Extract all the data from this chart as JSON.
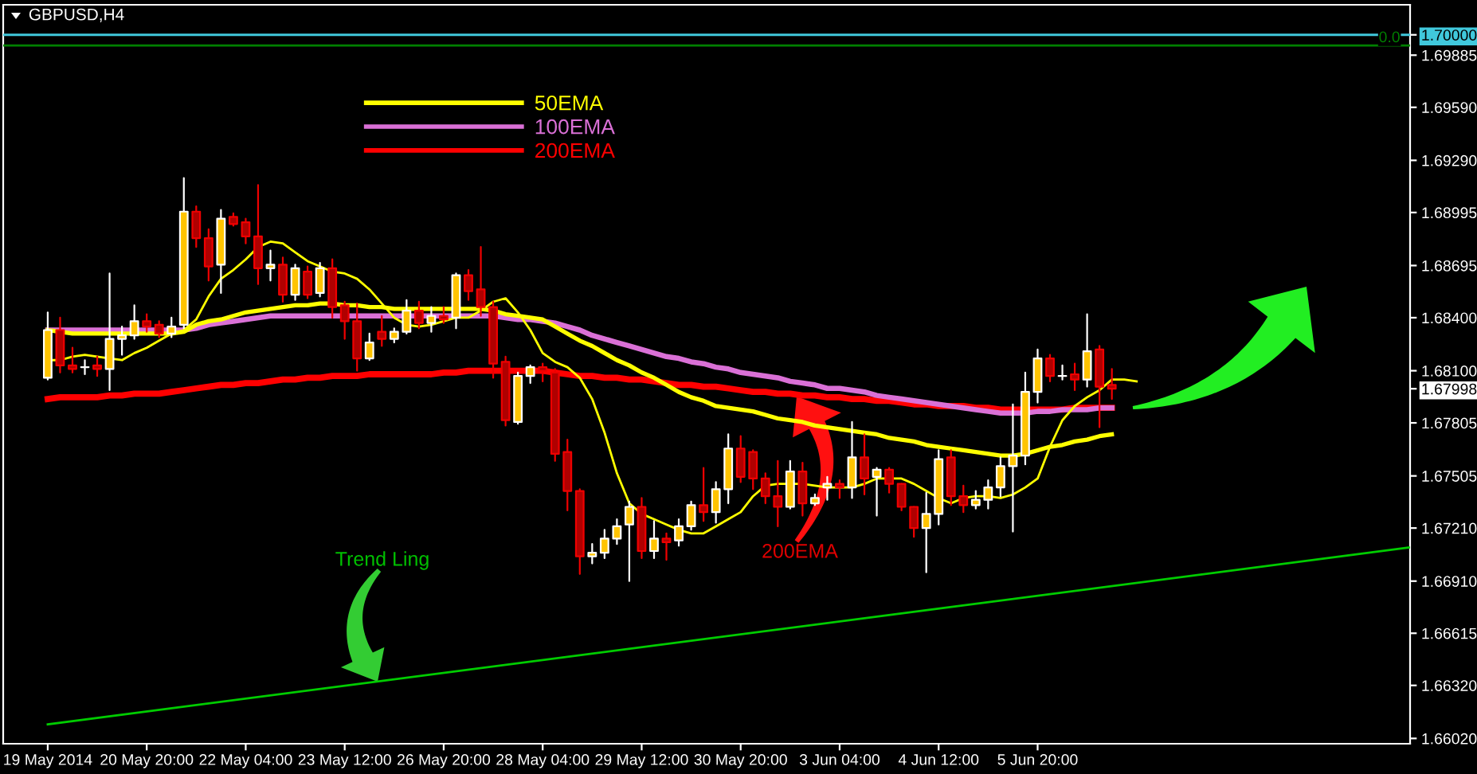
{
  "chart_data": {
    "type": "candlestick",
    "title": "GBPUSD,H4",
    "categories": [
      "19 May 2014",
      null,
      null,
      null,
      null,
      null,
      null,
      null,
      "20 May 20:00",
      null,
      null,
      null,
      null,
      null,
      null,
      null,
      "22 May 04:00",
      null,
      null,
      null,
      null,
      null,
      null,
      null,
      "23 May 12:00",
      null,
      null,
      null,
      null,
      null,
      null,
      null,
      "26 May 20:00",
      null,
      null,
      null,
      null,
      null,
      null,
      null,
      "28 May 04:00",
      null,
      null,
      null,
      null,
      null,
      null,
      null,
      "29 May 12:00",
      null,
      null,
      null,
      null,
      null,
      null,
      null,
      "30 May 20:00",
      null,
      null,
      null,
      null,
      null,
      null,
      null,
      "3 Jun 04:00",
      null,
      null,
      null,
      null,
      null,
      null,
      null,
      "4 Jun 12:00",
      null,
      null,
      null,
      null,
      null,
      null,
      null,
      "5 Jun 20:00",
      null,
      null,
      null,
      null,
      null,
      null,
      null,
      null,
      null,
      null,
      null,
      null,
      null,
      null,
      null,
      null,
      null,
      null,
      null,
      null,
      null,
      null,
      null,
      null,
      null,
      null,
      null,
      null,
      null,
      null
    ],
    "ohlc": [
      [
        1.6806,
        1.6843,
        1.6805,
        1.6833
      ],
      [
        1.6833,
        1.684,
        1.6809,
        1.6813
      ],
      [
        1.6813,
        1.6823,
        1.6809,
        1.6811
      ],
      [
        1.6812,
        1.6816,
        1.6808,
        1.6812
      ],
      [
        1.6813,
        1.6818,
        1.6807,
        1.6811
      ],
      [
        1.6811,
        1.6865,
        1.6799,
        1.6828
      ],
      [
        1.6828,
        1.6835,
        1.6819,
        1.683
      ],
      [
        1.683,
        1.6847,
        1.6828,
        1.6838
      ],
      [
        1.6838,
        1.6842,
        1.6832,
        1.6835
      ],
      [
        1.6836,
        1.6838,
        1.6829,
        1.6831
      ],
      [
        1.6831,
        1.684,
        1.6829,
        1.6835
      ],
      [
        1.6836,
        1.6919,
        1.6834,
        1.69
      ],
      [
        1.69,
        1.6903,
        1.688,
        1.6885
      ],
      [
        1.6885,
        1.689,
        1.6861,
        1.6869
      ],
      [
        1.687,
        1.6901,
        1.6854,
        1.6896
      ],
      [
        1.6897,
        1.6899,
        1.6892,
        1.6893
      ],
      [
        1.6894,
        1.6896,
        1.6882,
        1.6886
      ],
      [
        1.6886,
        1.6915,
        1.6859,
        1.6868
      ],
      [
        1.6868,
        1.6878,
        1.6861,
        1.687
      ],
      [
        1.687,
        1.6874,
        1.6849,
        1.6853
      ],
      [
        1.6853,
        1.687,
        1.685,
        1.6868
      ],
      [
        1.6866,
        1.6869,
        1.6851,
        1.6853
      ],
      [
        1.6854,
        1.6871,
        1.6852,
        1.6868
      ],
      [
        1.6868,
        1.6873,
        1.684,
        1.6846
      ],
      [
        1.6847,
        1.6849,
        1.6828,
        1.6838
      ],
      [
        1.6838,
        1.6848,
        1.681,
        1.6817
      ],
      [
        1.6817,
        1.6831,
        1.6816,
        1.6826
      ],
      [
        1.6832,
        1.6841,
        1.6824,
        1.6828
      ],
      [
        1.6828,
        1.6834,
        1.6826,
        1.6832
      ],
      [
        1.6832,
        1.685,
        1.6831,
        1.6844
      ],
      [
        1.6844,
        1.6849,
        1.6834,
        1.6837
      ],
      [
        1.6837,
        1.6846,
        1.6832,
        1.6841
      ],
      [
        1.6841,
        1.6846,
        1.6837,
        1.6839
      ],
      [
        1.684,
        1.6865,
        1.6834,
        1.6864
      ],
      [
        1.6864,
        1.6867,
        1.685,
        1.6855
      ],
      [
        1.6856,
        1.688,
        1.6841,
        1.6846
      ],
      [
        1.6846,
        1.6849,
        1.6806,
        1.6814
      ],
      [
        1.6815,
        1.6818,
        1.6779,
        1.6782
      ],
      [
        1.6781,
        1.6809,
        1.678,
        1.6807
      ],
      [
        1.6807,
        1.6813,
        1.6803,
        1.6812
      ],
      [
        1.6812,
        1.6814,
        1.6804,
        1.681
      ],
      [
        1.6809,
        1.6811,
        1.6759,
        1.6763
      ],
      [
        1.6764,
        1.6771,
        1.6731,
        1.6742
      ],
      [
        1.6742,
        1.6743,
        1.6695,
        1.6705
      ],
      [
        1.6705,
        1.6712,
        1.6701,
        1.6707
      ],
      [
        1.6707,
        1.672,
        1.6704,
        1.6715
      ],
      [
        1.6715,
        1.6726,
        1.6712,
        1.6722
      ],
      [
        1.6723,
        1.6736,
        1.6691,
        1.6733
      ],
      [
        1.6733,
        1.6738,
        1.6704,
        1.6708
      ],
      [
        1.6708,
        1.6725,
        1.6704,
        1.6715
      ],
      [
        1.6715,
        1.6718,
        1.6703,
        1.6713
      ],
      [
        1.6714,
        1.6726,
        1.6711,
        1.6722
      ],
      [
        1.6722,
        1.6736,
        1.672,
        1.6734
      ],
      [
        1.6734,
        1.6755,
        1.6725,
        1.673
      ],
      [
        1.673,
        1.6747,
        1.6724,
        1.6743
      ],
      [
        1.6743,
        1.6774,
        1.6735,
        1.6766
      ],
      [
        1.6766,
        1.6773,
        1.6747,
        1.675
      ],
      [
        1.6764,
        1.6765,
        1.6743,
        1.6749
      ],
      [
        1.6749,
        1.6752,
        1.6735,
        1.6739
      ],
      [
        1.6739,
        1.6759,
        1.6722,
        1.6733
      ],
      [
        1.6733,
        1.6759,
        1.6732,
        1.6753
      ],
      [
        1.6753,
        1.6758,
        1.6728,
        1.6735
      ],
      [
        1.6735,
        1.674,
        1.6734,
        1.6738
      ],
      [
        1.6744,
        1.675,
        1.6737,
        1.6746
      ],
      [
        1.6746,
        1.6748,
        1.6738,
        1.6744
      ],
      [
        1.6744,
        1.6781,
        1.6738,
        1.6761
      ],
      [
        1.6761,
        1.6774,
        1.674,
        1.6749
      ],
      [
        1.675,
        1.6755,
        1.6728,
        1.6754
      ],
      [
        1.6754,
        1.6755,
        1.6741,
        1.6746
      ],
      [
        1.6746,
        1.6746,
        1.6731,
        1.6733
      ],
      [
        1.6733,
        1.6733,
        1.6716,
        1.6721
      ],
      [
        1.6721,
        1.6741,
        1.6696,
        1.6729
      ],
      [
        1.6729,
        1.6765,
        1.6723,
        1.676
      ],
      [
        1.6761,
        1.6765,
        1.6734,
        1.6739
      ],
      [
        1.6739,
        1.6745,
        1.673,
        1.6734
      ],
      [
        1.6734,
        1.6742,
        1.6732,
        1.6737
      ],
      [
        1.6737,
        1.6748,
        1.6732,
        1.6744
      ],
      [
        1.6744,
        1.6761,
        1.6739,
        1.6756
      ],
      [
        1.6756,
        1.6791,
        1.6719,
        1.6762
      ],
      [
        1.6762,
        1.6809,
        1.6757,
        1.6798
      ],
      [
        1.6798,
        1.6822,
        1.6792,
        1.6817
      ],
      [
        1.6817,
        1.6819,
        1.6804,
        1.6807
      ],
      [
        1.6807,
        1.6813,
        1.6805,
        1.6807
      ],
      [
        1.6808,
        1.6814,
        1.6799,
        1.6805
      ],
      [
        1.6805,
        1.6842,
        1.6801,
        1.6821
      ],
      [
        1.6822,
        1.6824,
        1.6778,
        1.6801
      ],
      [
        1.6802,
        1.6811,
        1.6794,
        1.67998
      ],
      null,
      null,
      null,
      null,
      null,
      null,
      null,
      null,
      null,
      null,
      null,
      null,
      null,
      null,
      null,
      null,
      null,
      null,
      null,
      null,
      null,
      null,
      null,
      null
    ],
    "colors": [
      "#ffc400",
      "#b00000",
      "#b00000",
      "#ffffff",
      "#b00000",
      "#ffc400",
      "#ffc400",
      "#ffc400",
      "#b00000",
      "#b00000",
      "#ffc400",
      "#ffc400",
      "#b00000",
      "#b00000",
      "#ffc400",
      "#b00000",
      "#b00000",
      "#b00000",
      "#ffc400",
      "#b00000",
      "#ffc400",
      "#b00000",
      "#ffc400",
      "#b00000",
      "#b00000",
      "#b00000",
      "#ffc400",
      "#b00000",
      "#ffc400",
      "#ffc400",
      "#b00000",
      "#ffc400",
      "#b00000",
      "#ffc400",
      "#b00000",
      "#b00000",
      "#b00000",
      "#b00000",
      "#ffc400",
      "#ffc400",
      "#b00000",
      "#b00000",
      "#b00000",
      "#b00000",
      "#ffc400",
      "#ffc400",
      "#ffc400",
      "#ffc400",
      "#b00000",
      "#ffc400",
      "#b00000",
      "#ffc400",
      "#ffc400",
      "#b00000",
      "#ffc400",
      "#ffc400",
      "#b00000",
      "#b00000",
      "#b00000",
      "#b00000",
      "#ffc400",
      "#b00000",
      "#ffc400",
      "#ffc400",
      "#b00000",
      "#ffc400",
      "#b00000",
      "#ffc400",
      "#b00000",
      "#b00000",
      "#b00000",
      "#ffc400",
      "#ffc400",
      "#b00000",
      "#b00000",
      "#ffc400",
      "#ffc400",
      "#ffc400",
      "#ffc400",
      "#ffc400",
      "#ffc400",
      "#b00000",
      "#ffffff",
      "#b00000",
      "#ffc400",
      "#b00000",
      "#b00000",
      null,
      null,
      null,
      null,
      null,
      null,
      null,
      null,
      null,
      null,
      null,
      null,
      null,
      null,
      null,
      null,
      null,
      null,
      null,
      null,
      null,
      null,
      null,
      null
    ],
    "series": [
      {
        "name": "50EMA",
        "type": "line",
        "color": "#ffff00",
        "values": [
          1.6833,
          1.6832,
          1.6831,
          1.6831,
          1.6831,
          1.6831,
          1.6831,
          1.6831,
          1.6831,
          1.6831,
          1.6831,
          1.6832,
          1.6836,
          1.6838,
          1.6839,
          1.6841,
          1.6843,
          1.6844,
          1.6845,
          1.6846,
          1.6847,
          1.6847,
          1.6848,
          1.6848,
          1.6847,
          1.6847,
          1.6846,
          1.6846,
          1.6845,
          1.6845,
          1.6845,
          1.6845,
          1.6845,
          1.6845,
          1.6845,
          1.6845,
          1.6844,
          1.6842,
          1.6841,
          1.684,
          1.6839,
          1.6835,
          1.6831,
          1.6827,
          1.6824,
          1.682,
          1.6816,
          1.6813,
          1.6809,
          1.6806,
          1.6802,
          1.6798,
          1.6795,
          1.6793,
          1.679,
          1.6789,
          1.6788,
          1.6787,
          1.6785,
          1.6783,
          1.6782,
          1.6781,
          1.6779,
          1.6778,
          1.6777,
          1.6776,
          1.6775,
          1.6774,
          1.6772,
          1.6771,
          1.677,
          1.6768,
          1.6767,
          1.6766,
          1.6765,
          1.6764,
          1.6763,
          1.6762,
          1.6762,
          1.6763,
          1.6765,
          1.6767,
          1.6768,
          1.677,
          1.6771,
          1.6773,
          1.6774,
          null,
          null,
          null,
          null,
          null,
          null,
          null,
          null,
          null,
          null,
          null,
          null,
          null,
          null,
          null,
          null,
          null,
          null,
          null,
          null,
          null,
          null,
          null,
          null
        ]
      },
      {
        "name": "100EMA",
        "type": "line",
        "color": "#da70d6",
        "values": [
          1.6833,
          1.6833,
          1.6833,
          1.6833,
          1.6833,
          1.6833,
          1.6833,
          1.6833,
          1.6833,
          1.6833,
          1.6833,
          1.6833,
          1.6834,
          1.6836,
          1.6837,
          1.6838,
          1.6839,
          1.684,
          1.6841,
          1.6841,
          1.6841,
          1.6841,
          1.6841,
          1.6841,
          1.6841,
          1.6841,
          1.6841,
          1.6841,
          1.6841,
          1.6841,
          1.6841,
          1.6841,
          1.6841,
          1.6841,
          1.6841,
          1.6841,
          1.6841,
          1.684,
          1.6839,
          1.6839,
          1.6838,
          1.6837,
          1.6835,
          1.6833,
          1.683,
          1.6828,
          1.6826,
          1.6824,
          1.6822,
          1.682,
          1.6818,
          1.6817,
          1.6815,
          1.6814,
          1.6812,
          1.6811,
          1.6809,
          1.6808,
          1.6807,
          1.6806,
          1.6804,
          1.6803,
          1.6802,
          1.68,
          1.68,
          1.6799,
          1.6798,
          1.6796,
          1.6795,
          1.6794,
          1.6793,
          1.6792,
          1.6791,
          1.679,
          1.6789,
          1.6788,
          1.6787,
          1.6786,
          1.6786,
          1.6786,
          1.6787,
          1.6787,
          1.6788,
          1.6788,
          1.6788,
          1.6789,
          1.6789,
          null,
          null,
          null,
          null,
          null,
          null,
          null,
          null,
          null,
          null,
          null,
          null,
          null,
          null,
          null,
          null,
          null,
          null,
          null,
          null,
          null,
          null,
          null,
          null
        ]
      },
      {
        "name": "200EMA",
        "type": "line",
        "color": "#ff0000",
        "values": [
          1.6794,
          1.6795,
          1.6795,
          1.6795,
          1.6795,
          1.6796,
          1.6796,
          1.6797,
          1.6797,
          1.6797,
          1.6798,
          1.6799,
          1.68,
          1.6801,
          1.6802,
          1.6802,
          1.6803,
          1.6803,
          1.6804,
          1.6805,
          1.6805,
          1.6806,
          1.6806,
          1.6807,
          1.6807,
          1.6807,
          1.6808,
          1.6808,
          1.6808,
          1.6808,
          1.6808,
          1.6808,
          1.6809,
          1.6809,
          1.681,
          1.681,
          1.681,
          1.681,
          1.681,
          1.681,
          1.681,
          1.6809,
          1.6808,
          1.6807,
          1.6807,
          1.6806,
          1.6806,
          1.6805,
          1.6805,
          1.6804,
          1.6803,
          1.6802,
          1.6802,
          1.6801,
          1.6801,
          1.68,
          1.6799,
          1.6798,
          1.6798,
          1.6797,
          1.6797,
          1.6796,
          1.6796,
          1.6795,
          1.6795,
          1.6794,
          1.6794,
          1.6793,
          1.6793,
          1.6792,
          1.6791,
          1.6791,
          1.679,
          1.679,
          1.679,
          1.6789,
          1.6789,
          1.6788,
          1.6788,
          1.6788,
          1.6788,
          1.6788,
          1.6788,
          1.6789,
          1.6789,
          1.6789,
          1.6789,
          null,
          null,
          null,
          null,
          null,
          null,
          null,
          null,
          null,
          null,
          null,
          null,
          null,
          null,
          null,
          null,
          null,
          null,
          null,
          null,
          null,
          null,
          null,
          null
        ]
      },
      {
        "type": "line",
        "color": "#ffff00",
        "values": [
          1.6816,
          1.6816,
          1.6818,
          1.6819,
          1.6818,
          1.6817,
          1.6816,
          1.682,
          1.6823,
          1.6827,
          1.6831,
          1.6833,
          1.6839,
          1.6852,
          1.6862,
          1.6867,
          1.6873,
          1.688,
          1.6883,
          1.6882,
          1.6877,
          1.6872,
          1.6869,
          1.6866,
          1.6865,
          1.6862,
          1.6856,
          1.6848,
          1.684,
          1.6836,
          1.6835,
          1.6836,
          1.6838,
          1.684,
          1.684,
          1.6844,
          1.6849,
          1.6851,
          1.6843,
          1.6833,
          1.682,
          1.6815,
          1.6812,
          1.6806,
          1.6794,
          1.6775,
          1.6752,
          1.6735,
          1.6729,
          1.6726,
          1.6723,
          1.672,
          1.6718,
          1.6718,
          1.6722,
          1.6726,
          1.673,
          1.6739,
          1.6745,
          1.6746,
          1.6746,
          1.6746,
          1.6745,
          1.6744,
          1.6744,
          1.6744,
          1.6746,
          1.6749,
          1.6749,
          1.6749,
          1.6746,
          1.6742,
          1.6738,
          1.6735,
          1.6738,
          1.6739,
          1.6739,
          1.6738,
          1.674,
          1.6744,
          1.6749,
          1.6767,
          1.6782,
          1.679,
          1.6795,
          1.6799,
          1.6805,
          1.6805,
          1.6804,
          null,
          null,
          null,
          null,
          null,
          null,
          null,
          null,
          null,
          null,
          null,
          null,
          null,
          null,
          null,
          null,
          null,
          null,
          null,
          null,
          null,
          null
        ]
      },
      {
        "type": "line",
        "color": "#00cc00",
        "values": [
          1.661,
          null,
          null,
          null,
          null,
          null,
          null,
          null,
          null,
          null,
          null,
          null,
          null,
          null,
          null,
          null,
          null,
          null,
          null,
          null,
          null,
          null,
          null,
          null,
          null,
          null,
          null,
          null,
          null,
          null,
          null,
          null,
          null,
          null,
          null,
          null,
          null,
          null,
          null,
          null,
          null,
          null,
          null,
          null,
          null,
          null,
          null,
          null,
          null,
          null,
          null,
          null,
          null,
          null,
          null,
          null,
          null,
          null,
          null,
          null,
          null,
          null,
          null,
          null,
          null,
          null,
          null,
          null,
          null,
          null,
          null,
          null,
          null,
          null,
          null,
          null,
          null,
          null,
          null,
          null,
          null,
          null,
          null,
          null,
          null,
          null,
          null,
          null,
          null,
          null,
          null,
          null,
          null,
          null,
          null,
          null,
          null,
          null,
          null,
          null,
          null,
          null,
          null,
          null,
          null,
          null,
          null,
          null,
          null,
          null,
          1.671
        ]
      }
    ],
    "ylim": [
      1.6599,
      1.7017
    ],
    "yticks": [
      {
        "value": 1.7,
        "label": "1.70000"
      },
      {
        "value": 1.69885,
        "label": "1.69885"
      },
      {
        "value": 1.6959,
        "label": "1.69590"
      },
      {
        "value": 1.6929,
        "label": "1.69290"
      },
      {
        "value": 1.68995,
        "label": "1.68995"
      },
      {
        "value": 1.68695,
        "label": "1.68695"
      },
      {
        "value": 1.684,
        "label": "1.68400"
      },
      {
        "value": 1.681,
        "label": "1.68100"
      },
      {
        "value": 1.67998,
        "label": "1.67998"
      },
      {
        "value": 1.67805,
        "label": "1.67805"
      },
      {
        "value": 1.67505,
        "label": "1.67505"
      },
      {
        "value": 1.6721,
        "label": "1.67210"
      },
      {
        "value": 1.6691,
        "label": "1.66910"
      },
      {
        "value": 1.66615,
        "label": "1.66615"
      },
      {
        "value": 1.6632,
        "label": "1.66320"
      },
      {
        "value": 1.6602,
        "label": "1.66020"
      }
    ],
    "ref_lines": [
      {
        "axis": "y",
        "value": 1.7,
        "color": "#40c8dc"
      },
      {
        "axis": "y",
        "value": 1.6994,
        "color": "#008000"
      }
    ],
    "annotations": [
      "Trend Ling",
      "200EMA",
      {
        "text": "0.0",
        "y": 1.6994
      }
    ],
    "legend": "top left"
  }
}
